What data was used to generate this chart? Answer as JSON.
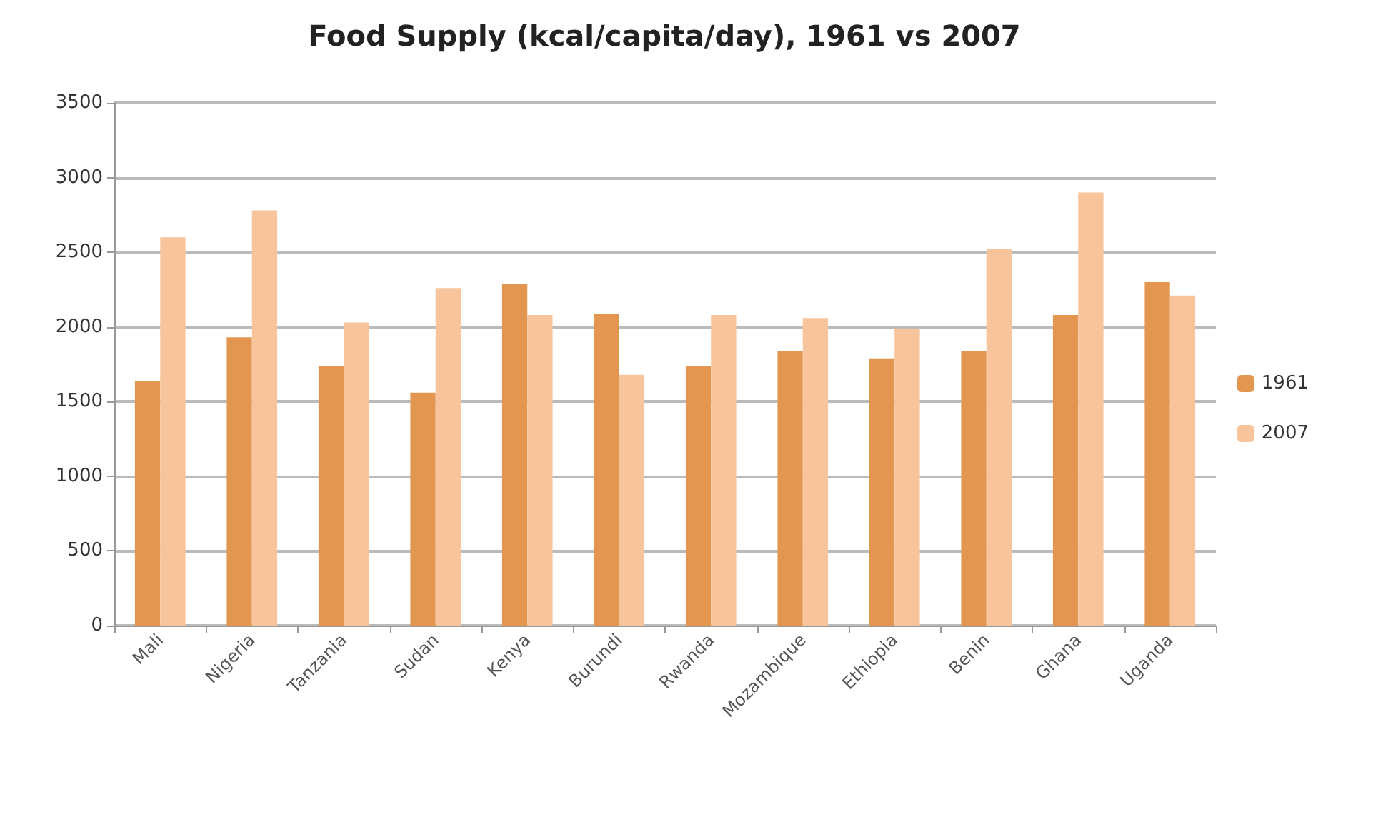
{
  "chart_data": {
    "type": "bar",
    "title": "Food Supply (kcal/capita/day), 1961 vs 2007",
    "categories": [
      "Mali",
      "Nigeria",
      "Tanzania",
      "Sudan",
      "Kenya",
      "Burundi",
      "Rwanda",
      "Mozambique",
      "Ethiopia",
      "Benin",
      "Ghana",
      "Uganda"
    ],
    "series": [
      {
        "name": "1961",
        "color": "#e3964f",
        "values": [
          1640,
          1930,
          1740,
          1560,
          2290,
          2090,
          1740,
          1840,
          1790,
          1840,
          2080,
          2300
        ]
      },
      {
        "name": "2007",
        "color": "#f8c49c",
        "values": [
          2600,
          2780,
          2030,
          2260,
          2080,
          1680,
          2080,
          2060,
          1990,
          2520,
          2900,
          2210
        ]
      }
    ],
    "ylim": [
      0,
      3500
    ],
    "yticks": [
      0,
      500,
      1000,
      1500,
      2000,
      2500,
      3000,
      3500
    ],
    "grid": "y",
    "legend": "right"
  }
}
